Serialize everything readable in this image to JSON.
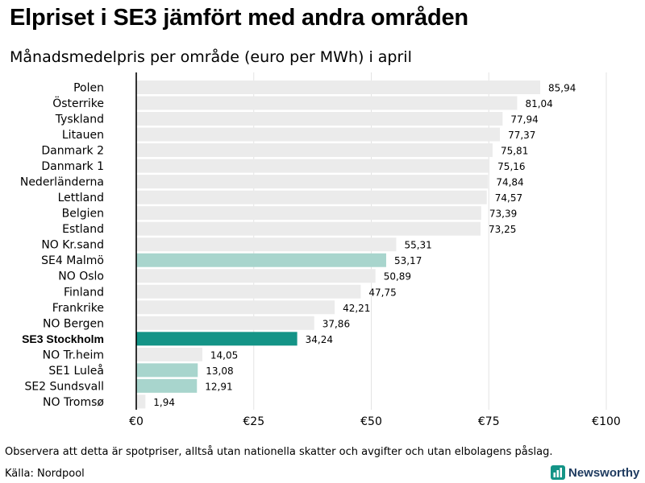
{
  "title": "Elpriset i SE3 jämfört med andra områden",
  "subtitle": "Månadsmedelpris per område (euro per MWh) i april",
  "note": "Observera att detta är spotpriser, alltså utan nationella skatter och avgifter och utan elbolagens påslag.",
  "source": "Källa: Nordpool",
  "brand": {
    "name": "Newsworthy",
    "icon": "newsworthy-logo-icon"
  },
  "colors": {
    "default_bar": "#ebebeb",
    "sweden_bar": "#a8d5cd",
    "highlight_bar": "#149487",
    "grid": "#e3e3e3",
    "axis": "#000000",
    "brand": "#1e3a5f"
  },
  "chart_data": {
    "type": "bar",
    "orientation": "horizontal",
    "title": "Månadsmedelpris per område (euro per MWh) i april",
    "xlabel": "",
    "ylabel": "",
    "xlim": [
      0,
      100
    ],
    "grid": true,
    "ticks": [
      {
        "value": 0,
        "label": "€0"
      },
      {
        "value": 25,
        "label": "€25"
      },
      {
        "value": 50,
        "label": "€50"
      },
      {
        "value": 75,
        "label": "€75"
      },
      {
        "value": 100,
        "label": "€100"
      }
    ],
    "categories": [
      "Polen",
      "Österrike",
      "Tyskland",
      "Litauen",
      "Danmark 2",
      "Danmark 1",
      "Nederländerna",
      "Lettland",
      "Belgien",
      "Estland",
      "NO Kr.sand",
      "SE4 Malmö",
      "NO Oslo",
      "Finland",
      "Frankrike",
      "NO Bergen",
      "SE3 Stockholm",
      "NO Tr.heim",
      "SE1 Luleå",
      "SE2 Sundsvall",
      "NO Tromsø"
    ],
    "values": [
      85.94,
      81.04,
      77.94,
      77.37,
      75.81,
      75.16,
      74.84,
      74.57,
      73.39,
      73.25,
      55.31,
      53.17,
      50.89,
      47.75,
      42.21,
      37.86,
      34.24,
      14.05,
      13.08,
      12.91,
      1.94
    ],
    "value_labels": [
      "85,94",
      "81,04",
      "77,94",
      "77,37",
      "75,81",
      "75,16",
      "74,84",
      "74,57",
      "73,39",
      "73,25",
      "55,31",
      "53,17",
      "50,89",
      "47,75",
      "42,21",
      "37,86",
      "34,24",
      "14,05",
      "13,08",
      "12,91",
      "1,94"
    ],
    "groups": [
      "other",
      "other",
      "other",
      "other",
      "other",
      "other",
      "other",
      "other",
      "other",
      "other",
      "other",
      "sweden",
      "other",
      "other",
      "other",
      "other",
      "highlight",
      "other",
      "sweden",
      "sweden",
      "other"
    ],
    "highlight": "SE3 Stockholm"
  }
}
